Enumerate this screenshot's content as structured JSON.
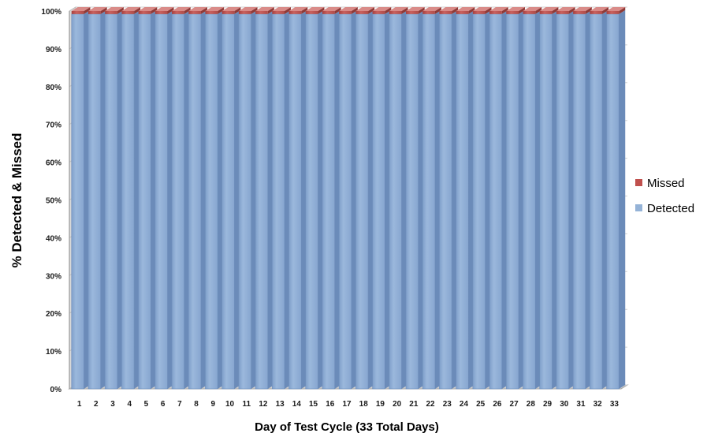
{
  "chart_data": {
    "type": "bar",
    "stacked": true,
    "percent_stacked": true,
    "three_d": true,
    "title": "",
    "xlabel": "Day of Test Cycle (33 Total Days)",
    "ylabel": "% Detected & Missed",
    "categories": [
      "1",
      "2",
      "3",
      "4",
      "5",
      "6",
      "7",
      "8",
      "9",
      "10",
      "11",
      "12",
      "13",
      "14",
      "15",
      "16",
      "17",
      "18",
      "19",
      "20",
      "21",
      "22",
      "23",
      "24",
      "25",
      "26",
      "27",
      "28",
      "29",
      "30",
      "31",
      "32",
      "33"
    ],
    "ylim": [
      0,
      100
    ],
    "yticks": [
      "0%",
      "10%",
      "20%",
      "30%",
      "40%",
      "50%",
      "60%",
      "70%",
      "80%",
      "90%",
      "100%"
    ],
    "grid": true,
    "legend_position": "right",
    "legend": [
      "Missed",
      "Detected"
    ],
    "series": [
      {
        "name": "Detected",
        "color": "#95b3d7",
        "values": [
          99.2,
          99.2,
          99.2,
          99.2,
          99.2,
          99.2,
          99.2,
          99.2,
          99.2,
          99.2,
          99.2,
          99.2,
          99.2,
          99.2,
          99.2,
          99.2,
          99.2,
          99.2,
          99.2,
          99.2,
          99.2,
          99.2,
          99.2,
          99.2,
          99.2,
          99.2,
          99.2,
          99.2,
          99.2,
          99.2,
          99.2,
          99.2,
          99.2
        ]
      },
      {
        "name": "Missed",
        "color": "#c0504d",
        "values": [
          0.8,
          0.8,
          0.8,
          0.8,
          0.8,
          0.8,
          0.8,
          0.8,
          0.8,
          0.8,
          0.8,
          0.8,
          0.8,
          0.8,
          0.8,
          0.8,
          0.8,
          0.8,
          0.8,
          0.8,
          0.8,
          0.8,
          0.8,
          0.8,
          0.8,
          0.8,
          0.8,
          0.8,
          0.8,
          0.8,
          0.8,
          0.8,
          0.8
        ]
      }
    ]
  }
}
